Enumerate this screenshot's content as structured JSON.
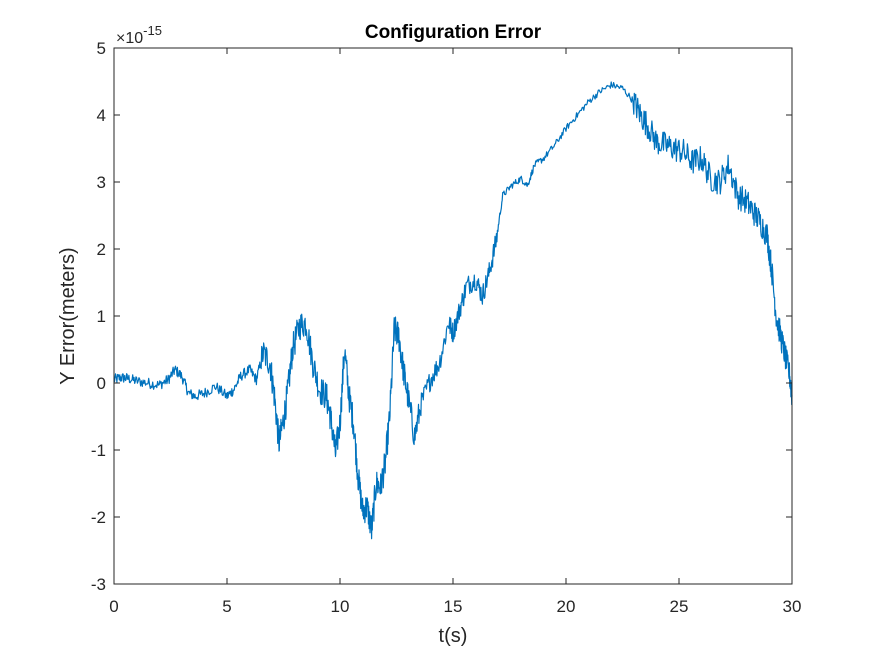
{
  "chart_data": {
    "type": "line",
    "title": "Configuration Error",
    "xlabel": "t(s)",
    "ylabel": "Y Error(meters)",
    "exponent_label": {
      "base": "×10",
      "power": "-15"
    },
    "xlim": [
      0,
      30
    ],
    "ylim": [
      -3,
      5
    ],
    "xticks": [
      0,
      5,
      10,
      15,
      20,
      25,
      30
    ],
    "yticks": [
      -3,
      -2,
      -1,
      0,
      1,
      2,
      3,
      4,
      5
    ],
    "xtick_labels": [
      "0",
      "5",
      "10",
      "15",
      "20",
      "25",
      "30"
    ],
    "ytick_labels": [
      "-3",
      "-2",
      "-1",
      "0",
      "1",
      "2",
      "3",
      "4",
      "5"
    ],
    "grid": false,
    "legend": "none",
    "line_color": "#0072BD",
    "series": [
      {
        "x": [
          0,
          0.3,
          0.6,
          1,
          1.5,
          2,
          2.4,
          2.7,
          3,
          3.3,
          3.6,
          4,
          4.5,
          5,
          5.3,
          5.6,
          6,
          6.3,
          6.6,
          6.9,
          7.1,
          7.3,
          7.5,
          7.7,
          7.9,
          8.2,
          8.5,
          8.8,
          9.1,
          9.4,
          9.6,
          9.8,
          10,
          10.2,
          10.4,
          10.6,
          10.8,
          11,
          11.2,
          11.4,
          11.6,
          11.8,
          12,
          12.2,
          12.4,
          12.6,
          12.8,
          13,
          13.3,
          13.6,
          14,
          14.4,
          14.8,
          15,
          15.3,
          15.6,
          16,
          16.3,
          16.6,
          16.9,
          17.2,
          17.6,
          18,
          18.3,
          18.6,
          19,
          19.5,
          20,
          20.5,
          21,
          21.5,
          22,
          22.5,
          23,
          23.3,
          23.6,
          24,
          24.4,
          24.8,
          25.2,
          25.6,
          26,
          26.4,
          26.8,
          27.2,
          27.6,
          28,
          28.3,
          28.6,
          28.9,
          29.1,
          29.3,
          29.5,
          29.7,
          29.9,
          30
        ],
        "y": [
          0.05,
          0.08,
          0.07,
          0.03,
          0,
          -0.03,
          0.05,
          0.2,
          0.1,
          -0.15,
          -0.2,
          -0.15,
          -0.05,
          -0.2,
          -0.1,
          0.1,
          0.2,
          0.05,
          0.45,
          0.3,
          -0.2,
          -0.9,
          -0.55,
          -0.1,
          0.5,
          0.85,
          0.9,
          0.3,
          -0.1,
          -0.2,
          -0.55,
          -1.05,
          -0.6,
          0.5,
          -0.2,
          -0.6,
          -1.4,
          -1.9,
          -1.85,
          -2.2,
          -1.5,
          -1.55,
          -1.2,
          -0.5,
          0.8,
          0.7,
          0.2,
          -0.2,
          -0.8,
          -0.3,
          0.05,
          0.3,
          0.9,
          0.75,
          1.1,
          1.45,
          1.55,
          1.3,
          1.65,
          2.1,
          2.8,
          2.95,
          3.05,
          2.95,
          3.25,
          3.35,
          3.55,
          3.8,
          4.0,
          4.2,
          4.35,
          4.45,
          4.4,
          4.2,
          4.0,
          3.85,
          3.6,
          3.55,
          3.5,
          3.45,
          3.3,
          3.35,
          3.05,
          3.0,
          3.25,
          2.8,
          2.7,
          2.55,
          2.4,
          2.2,
          1.7,
          1.0,
          0.7,
          0.4,
          0.1,
          -0.2
        ]
      }
    ]
  }
}
